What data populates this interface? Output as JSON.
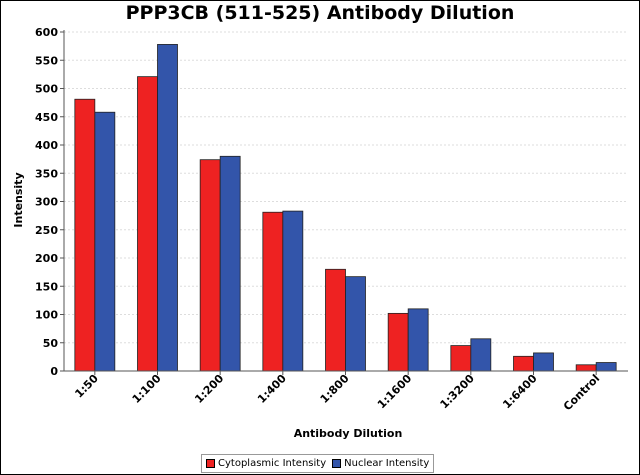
{
  "chart_data": {
    "type": "bar",
    "title": "PPP3CB (511-525) Antibody Dilution",
    "xlabel": "Antibody Dilution",
    "ylabel": "Intensity",
    "categories": [
      "1:50",
      "1:100",
      "1:200",
      "1:400",
      "1:800",
      "1:1600",
      "1:3200",
      "1:6400",
      "Control"
    ],
    "series": [
      {
        "name": "Cytoplasmic Intensity",
        "color": "#ee2222",
        "values": [
          481,
          521,
          374,
          281,
          180,
          102,
          45,
          26,
          11
        ]
      },
      {
        "name": "Nuclear Intensity",
        "color": "#3355aa",
        "values": [
          458,
          578,
          380,
          283,
          167,
          110,
          57,
          32,
          15
        ]
      }
    ],
    "ylim": [
      0,
      600
    ],
    "yticks": [
      0,
      50,
      100,
      150,
      200,
      250,
      300,
      350,
      400,
      450,
      500,
      550,
      600
    ],
    "grid": true,
    "legend_position": "bottom"
  }
}
